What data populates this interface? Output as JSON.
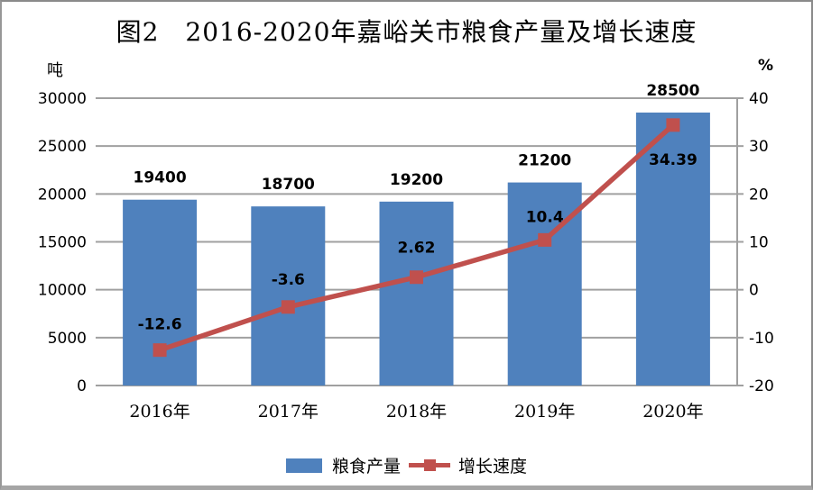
{
  "chart_data": {
    "type": "bar",
    "combo": "bar+line",
    "title": "图2　2016-2020年嘉峪关市粮食产量及增长速度",
    "categories": [
      "2016年",
      "2017年",
      "2018年",
      "2019年",
      "2020年"
    ],
    "series": [
      {
        "name": "粮食产量",
        "type": "bar",
        "axis": "left",
        "color": "#4F81BD",
        "values": [
          19400,
          18700,
          19200,
          21200,
          28500
        ],
        "labels": [
          "19400",
          "18700",
          "19200",
          "21200",
          "28500"
        ]
      },
      {
        "name": "增长速度",
        "type": "line",
        "axis": "right",
        "color": "#C0504D",
        "values": [
          -12.6,
          -3.6,
          2.62,
          10.4,
          34.39
        ],
        "labels": [
          "-12.6",
          "-3.6",
          "2.62",
          "10.4",
          "34.39"
        ]
      }
    ],
    "left_axis": {
      "label": "吨",
      "min": 0,
      "max": 30000,
      "step": 5000,
      "tick_labels": [
        "0",
        "5000",
        "10000",
        "15000",
        "20000",
        "25000",
        "30000"
      ]
    },
    "right_axis": {
      "label": "%",
      "min": -20,
      "max": 40,
      "step": 10,
      "tick_labels": [
        "-20",
        "-10",
        "0",
        "10",
        "20",
        "30",
        "40"
      ]
    },
    "grid": true,
    "legend_position": "bottom",
    "colors": {
      "bar": "#4F81BD",
      "line": "#C0504D",
      "gridline": "#A0A0A0",
      "text": "#000000"
    }
  }
}
